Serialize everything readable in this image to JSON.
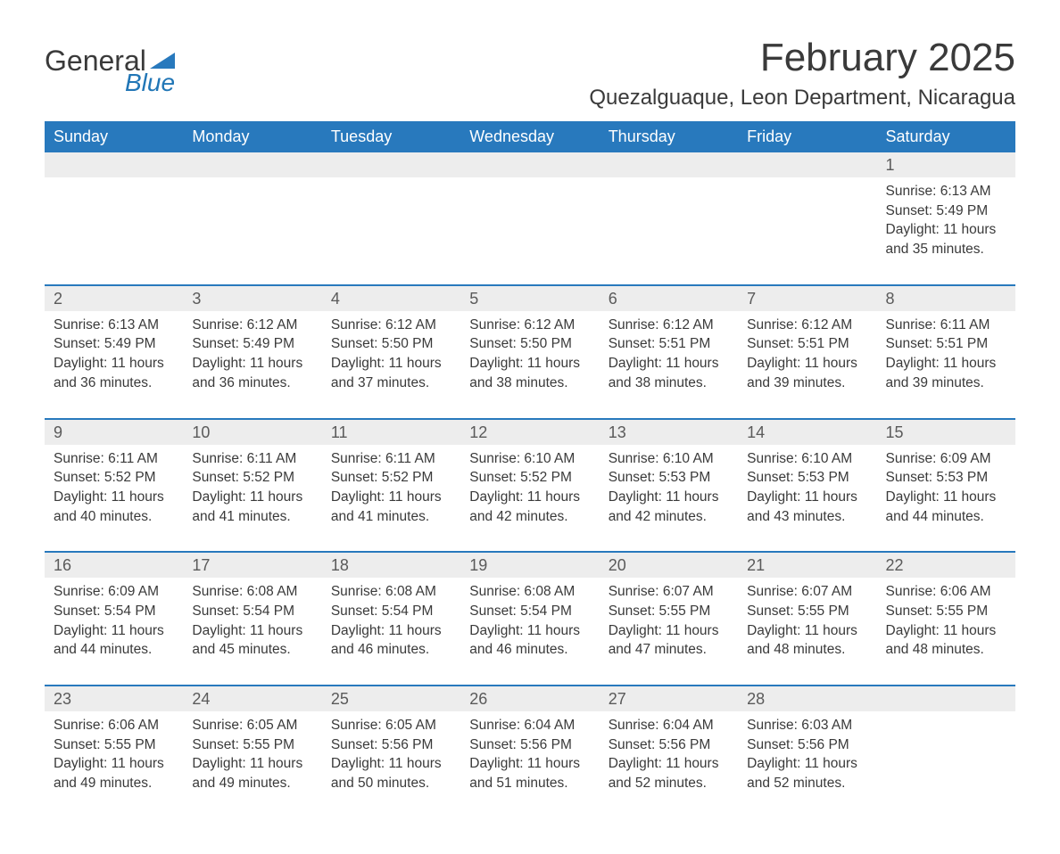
{
  "logo": {
    "word1": "General",
    "word2": "Blue",
    "word1_color": "#3a3a3a",
    "word2_color": "#2176b6",
    "flag_color": "#2879bd"
  },
  "title": "February 2025",
  "location": "Quezalguaque, Leon Department, Nicaragua",
  "colors": {
    "header_bg": "#2879bd",
    "header_text": "#ffffff",
    "daynum_bg": "#ededed",
    "week_border": "#2879bd",
    "text": "#3a3a3a",
    "background": "#ffffff"
  },
  "font": {
    "family": "Arial",
    "title_size_pt": 33,
    "location_size_pt": 18,
    "header_size_pt": 14,
    "body_size_pt": 12
  },
  "weekdays": [
    "Sunday",
    "Monday",
    "Tuesday",
    "Wednesday",
    "Thursday",
    "Friday",
    "Saturday"
  ],
  "weeks": [
    [
      {
        "n": ""
      },
      {
        "n": ""
      },
      {
        "n": ""
      },
      {
        "n": ""
      },
      {
        "n": ""
      },
      {
        "n": ""
      },
      {
        "n": "1",
        "sunrise": "Sunrise: 6:13 AM",
        "sunset": "Sunset: 5:49 PM",
        "day1": "Daylight: 11 hours",
        "day2": "and 35 minutes."
      }
    ],
    [
      {
        "n": "2",
        "sunrise": "Sunrise: 6:13 AM",
        "sunset": "Sunset: 5:49 PM",
        "day1": "Daylight: 11 hours",
        "day2": "and 36 minutes."
      },
      {
        "n": "3",
        "sunrise": "Sunrise: 6:12 AM",
        "sunset": "Sunset: 5:49 PM",
        "day1": "Daylight: 11 hours",
        "day2": "and 36 minutes."
      },
      {
        "n": "4",
        "sunrise": "Sunrise: 6:12 AM",
        "sunset": "Sunset: 5:50 PM",
        "day1": "Daylight: 11 hours",
        "day2": "and 37 minutes."
      },
      {
        "n": "5",
        "sunrise": "Sunrise: 6:12 AM",
        "sunset": "Sunset: 5:50 PM",
        "day1": "Daylight: 11 hours",
        "day2": "and 38 minutes."
      },
      {
        "n": "6",
        "sunrise": "Sunrise: 6:12 AM",
        "sunset": "Sunset: 5:51 PM",
        "day1": "Daylight: 11 hours",
        "day2": "and 38 minutes."
      },
      {
        "n": "7",
        "sunrise": "Sunrise: 6:12 AM",
        "sunset": "Sunset: 5:51 PM",
        "day1": "Daylight: 11 hours",
        "day2": "and 39 minutes."
      },
      {
        "n": "8",
        "sunrise": "Sunrise: 6:11 AM",
        "sunset": "Sunset: 5:51 PM",
        "day1": "Daylight: 11 hours",
        "day2": "and 39 minutes."
      }
    ],
    [
      {
        "n": "9",
        "sunrise": "Sunrise: 6:11 AM",
        "sunset": "Sunset: 5:52 PM",
        "day1": "Daylight: 11 hours",
        "day2": "and 40 minutes."
      },
      {
        "n": "10",
        "sunrise": "Sunrise: 6:11 AM",
        "sunset": "Sunset: 5:52 PM",
        "day1": "Daylight: 11 hours",
        "day2": "and 41 minutes."
      },
      {
        "n": "11",
        "sunrise": "Sunrise: 6:11 AM",
        "sunset": "Sunset: 5:52 PM",
        "day1": "Daylight: 11 hours",
        "day2": "and 41 minutes."
      },
      {
        "n": "12",
        "sunrise": "Sunrise: 6:10 AM",
        "sunset": "Sunset: 5:52 PM",
        "day1": "Daylight: 11 hours",
        "day2": "and 42 minutes."
      },
      {
        "n": "13",
        "sunrise": "Sunrise: 6:10 AM",
        "sunset": "Sunset: 5:53 PM",
        "day1": "Daylight: 11 hours",
        "day2": "and 42 minutes."
      },
      {
        "n": "14",
        "sunrise": "Sunrise: 6:10 AM",
        "sunset": "Sunset: 5:53 PM",
        "day1": "Daylight: 11 hours",
        "day2": "and 43 minutes."
      },
      {
        "n": "15",
        "sunrise": "Sunrise: 6:09 AM",
        "sunset": "Sunset: 5:53 PM",
        "day1": "Daylight: 11 hours",
        "day2": "and 44 minutes."
      }
    ],
    [
      {
        "n": "16",
        "sunrise": "Sunrise: 6:09 AM",
        "sunset": "Sunset: 5:54 PM",
        "day1": "Daylight: 11 hours",
        "day2": "and 44 minutes."
      },
      {
        "n": "17",
        "sunrise": "Sunrise: 6:08 AM",
        "sunset": "Sunset: 5:54 PM",
        "day1": "Daylight: 11 hours",
        "day2": "and 45 minutes."
      },
      {
        "n": "18",
        "sunrise": "Sunrise: 6:08 AM",
        "sunset": "Sunset: 5:54 PM",
        "day1": "Daylight: 11 hours",
        "day2": "and 46 minutes."
      },
      {
        "n": "19",
        "sunrise": "Sunrise: 6:08 AM",
        "sunset": "Sunset: 5:54 PM",
        "day1": "Daylight: 11 hours",
        "day2": "and 46 minutes."
      },
      {
        "n": "20",
        "sunrise": "Sunrise: 6:07 AM",
        "sunset": "Sunset: 5:55 PM",
        "day1": "Daylight: 11 hours",
        "day2": "and 47 minutes."
      },
      {
        "n": "21",
        "sunrise": "Sunrise: 6:07 AM",
        "sunset": "Sunset: 5:55 PM",
        "day1": "Daylight: 11 hours",
        "day2": "and 48 minutes."
      },
      {
        "n": "22",
        "sunrise": "Sunrise: 6:06 AM",
        "sunset": "Sunset: 5:55 PM",
        "day1": "Daylight: 11 hours",
        "day2": "and 48 minutes."
      }
    ],
    [
      {
        "n": "23",
        "sunrise": "Sunrise: 6:06 AM",
        "sunset": "Sunset: 5:55 PM",
        "day1": "Daylight: 11 hours",
        "day2": "and 49 minutes."
      },
      {
        "n": "24",
        "sunrise": "Sunrise: 6:05 AM",
        "sunset": "Sunset: 5:55 PM",
        "day1": "Daylight: 11 hours",
        "day2": "and 49 minutes."
      },
      {
        "n": "25",
        "sunrise": "Sunrise: 6:05 AM",
        "sunset": "Sunset: 5:56 PM",
        "day1": "Daylight: 11 hours",
        "day2": "and 50 minutes."
      },
      {
        "n": "26",
        "sunrise": "Sunrise: 6:04 AM",
        "sunset": "Sunset: 5:56 PM",
        "day1": "Daylight: 11 hours",
        "day2": "and 51 minutes."
      },
      {
        "n": "27",
        "sunrise": "Sunrise: 6:04 AM",
        "sunset": "Sunset: 5:56 PM",
        "day1": "Daylight: 11 hours",
        "day2": "and 52 minutes."
      },
      {
        "n": "28",
        "sunrise": "Sunrise: 6:03 AM",
        "sunset": "Sunset: 5:56 PM",
        "day1": "Daylight: 11 hours",
        "day2": "and 52 minutes."
      },
      {
        "n": ""
      }
    ]
  ]
}
